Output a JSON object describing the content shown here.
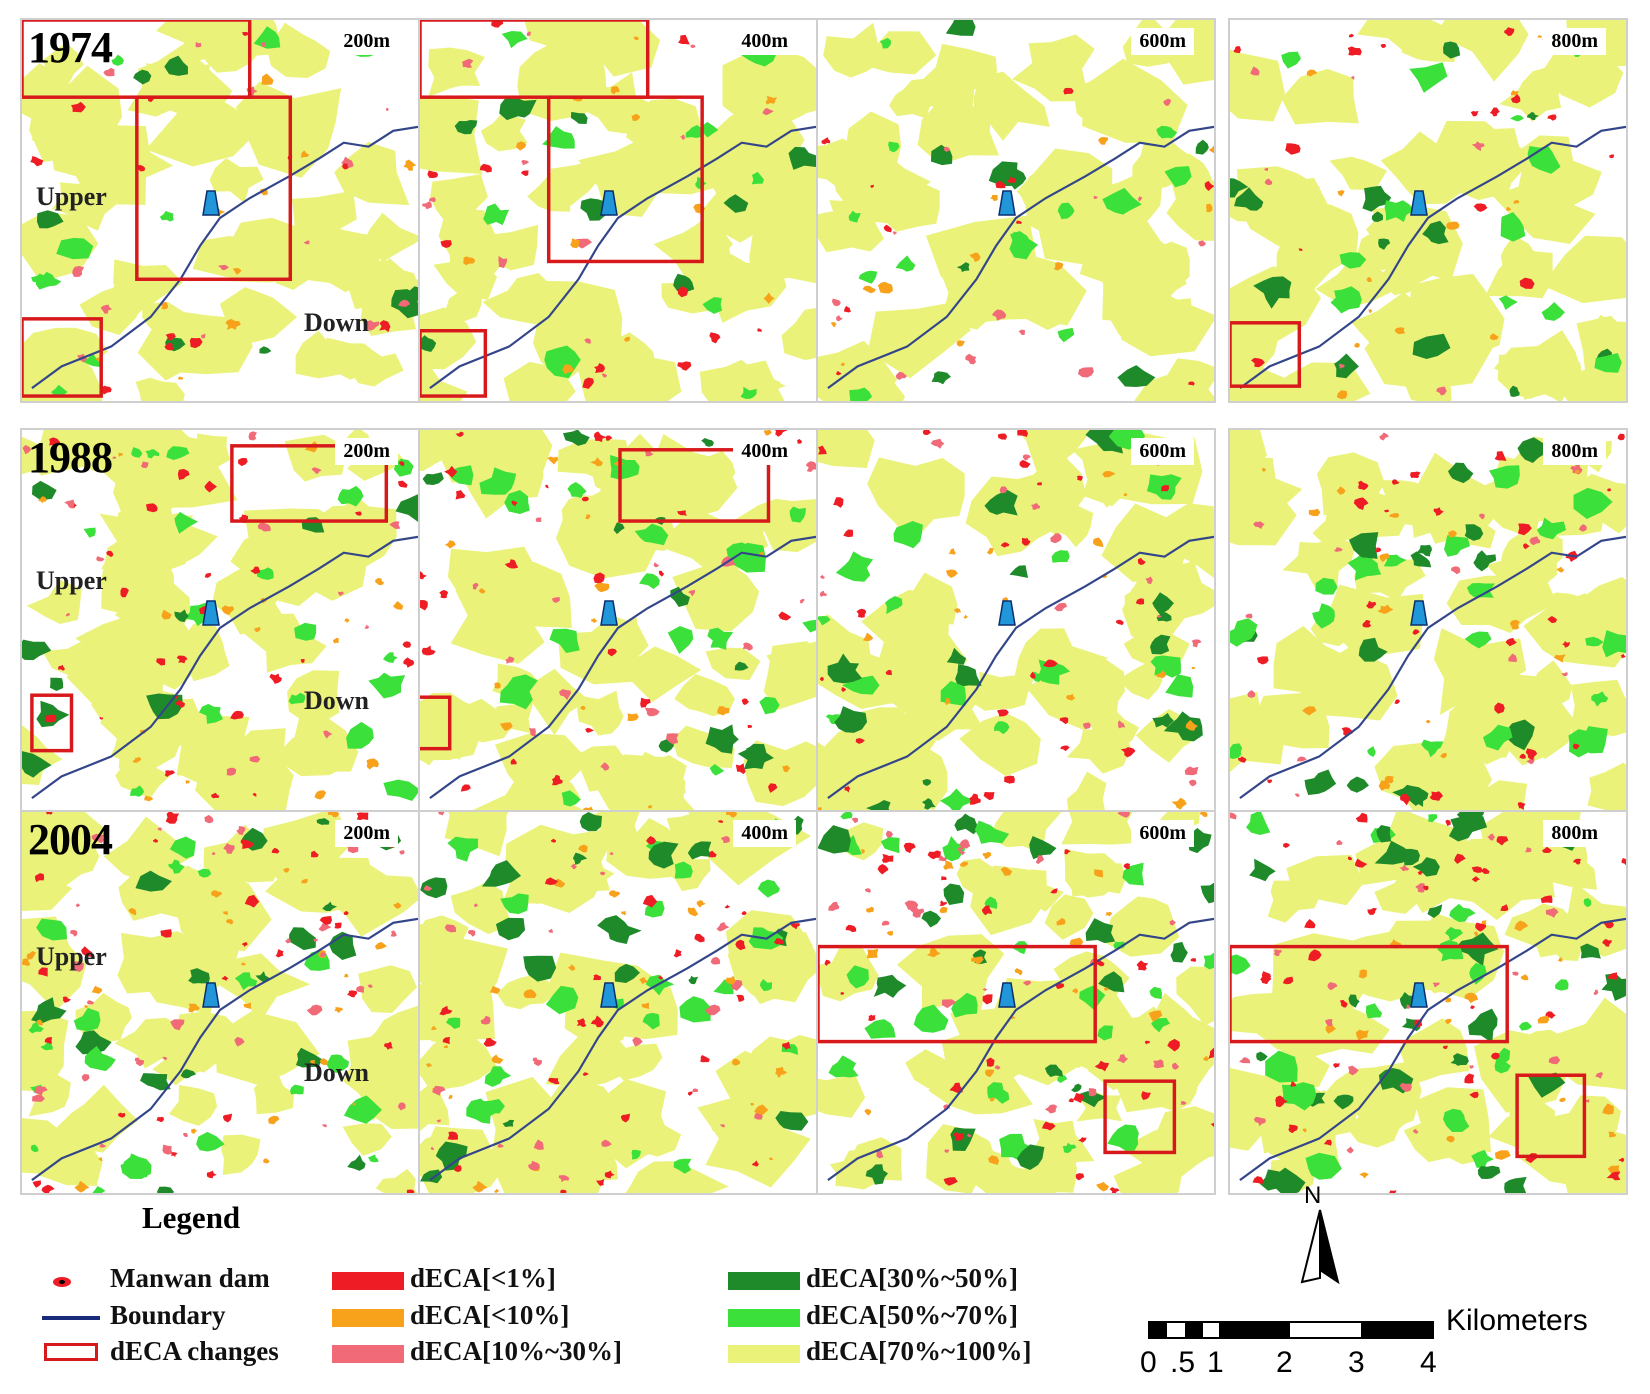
{
  "years": [
    "1974",
    "1988",
    "2004"
  ],
  "distances": [
    "200m",
    "400m",
    "600m",
    "800m"
  ],
  "labels": {
    "upper": "Upper",
    "down": "Down"
  },
  "legend": {
    "title": "Legend",
    "dam": "Manwan dam",
    "boundary": "Boundary",
    "changes": "dECA changes",
    "classes": [
      {
        "label": "dECA[<1%]",
        "color": "#ee1c24"
      },
      {
        "label": "dECA[<10%]",
        "color": "#f7a21a"
      },
      {
        "label": "dECA[10%~30%]",
        "color": "#f06a78"
      },
      {
        "label": "dECA[30%~50%]",
        "color": "#1f8a2a"
      },
      {
        "label": "dECA[50%~70%]",
        "color": "#3ce03a"
      },
      {
        "label": "dECA[70%~100%]",
        "color": "#eaf27a"
      }
    ]
  },
  "north": "N",
  "scale_bar": {
    "unit": "Kilometers",
    "ticks": [
      "0",
      ".5",
      "1",
      "2",
      "3",
      "4"
    ]
  },
  "colors": {
    "boundary": "#34468a",
    "change_box": "#d7191c",
    "dam": "#2196d8"
  }
}
